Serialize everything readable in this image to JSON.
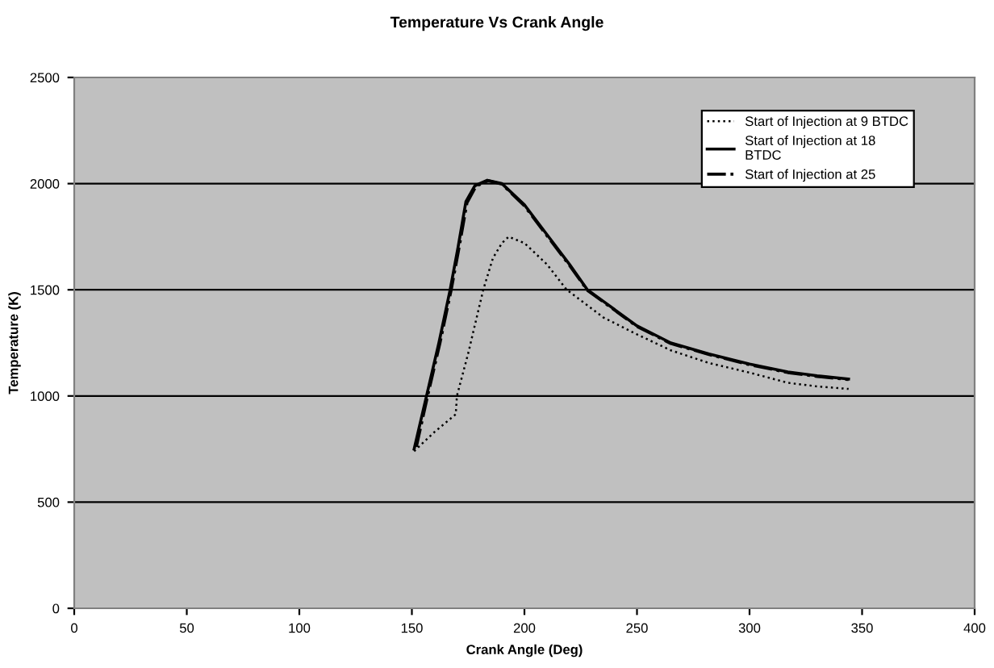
{
  "chart_data": {
    "type": "line",
    "title": "Temperature Vs Crank Angle",
    "xlabel": "Crank Angle (Deg)",
    "ylabel": "Temperature (K)",
    "xlim": [
      0,
      400
    ],
    "xticks": [
      0,
      50,
      100,
      150,
      200,
      250,
      300,
      350,
      400
    ],
    "ylim": [
      0,
      2500
    ],
    "yticks": [
      0,
      500,
      1000,
      1500,
      2000,
      2500
    ],
    "grid": "y",
    "legend": "top right",
    "marker": "none",
    "series": [
      {
        "name": "Start of Injection at 9 BTDC",
        "color": "#000000",
        "line_style": "dotted",
        "x": [
          151,
          160,
          169.5,
          170,
          175,
          181.7,
          186,
          190,
          193,
          200,
          210,
          218.8,
          235,
          250,
          265,
          282,
          300,
          317,
          330,
          344
        ],
        "values": [
          740,
          830,
          914,
          1000,
          1200,
          1500,
          1649,
          1720,
          1750,
          1720,
          1620,
          1500,
          1370,
          1290,
          1215,
          1155,
          1110,
          1062,
          1045,
          1033
        ]
      },
      {
        "name": "Start of Injection at 18\nBTDC",
        "color": "#000000",
        "line_style": "solid",
        "x": [
          151,
          156.5,
          162,
          167,
          170.5,
          174,
          178,
          183.5,
          190,
          200,
          210,
          220,
          228,
          235,
          250,
          265,
          282,
          300,
          317,
          330,
          344
        ],
        "values": [
          750,
          1000,
          1250,
          1500,
          1700,
          1915,
          1990,
          2016,
          2000,
          1900,
          1760,
          1620,
          1500,
          1446,
          1330,
          1250,
          1198,
          1150,
          1113,
          1095,
          1080
        ]
      },
      {
        "name": "Start of Injection at 25",
        "color": "#000000",
        "line_style": "dashdot",
        "x": [
          152,
          157,
          162.5,
          167.5,
          171,
          174.5,
          178.5,
          184,
          190,
          200,
          210,
          220,
          228,
          235,
          250,
          265,
          282,
          300,
          317,
          330,
          344
        ],
        "values": [
          760,
          1000,
          1250,
          1500,
          1700,
          1910,
          1988,
          2014,
          1998,
          1895,
          1755,
          1615,
          1497,
          1443,
          1327,
          1247,
          1195,
          1147,
          1110,
          1092,
          1077
        ]
      }
    ]
  }
}
